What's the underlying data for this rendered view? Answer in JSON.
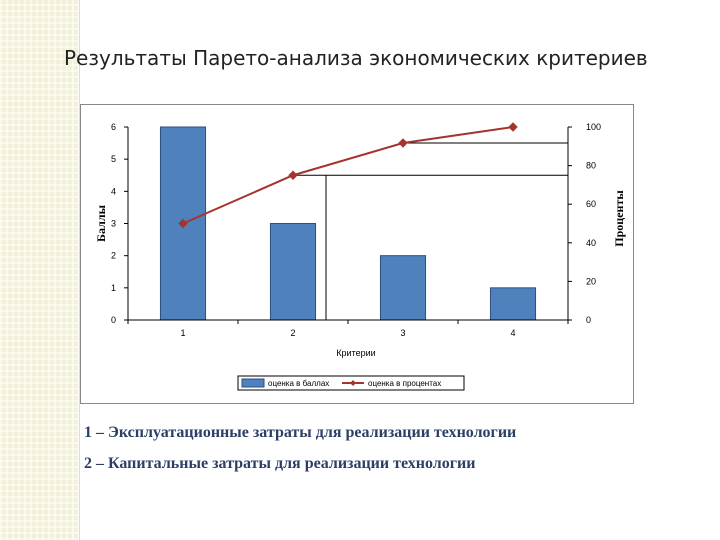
{
  "slide": {
    "title": "Результаты Парето-анализа экономических критериев"
  },
  "chart_data": {
    "type": "bar",
    "categories": [
      "1",
      "2",
      "3",
      "4"
    ],
    "xlabel": "Критерии",
    "ylabel": "Баллы",
    "y2label": "Проценты",
    "ylim": [
      0,
      6
    ],
    "y2lim": [
      0,
      100
    ],
    "yticks": [
      0,
      1,
      2,
      3,
      4,
      5,
      6
    ],
    "y2ticks": [
      0,
      20,
      40,
      60,
      80,
      100
    ],
    "series": [
      {
        "name": "оценка в баллах",
        "type": "bar",
        "axis": "left",
        "values": [
          6,
          3,
          2,
          1
        ],
        "color": "#4f81bd"
      },
      {
        "name": "оценка в процентах",
        "type": "line",
        "axis": "right",
        "values": [
          50,
          75,
          91.7,
          100
        ],
        "color": "#a5342f"
      }
    ],
    "legend": "bottom",
    "grid": false
  },
  "notes": [
    "1 – Эксплуатационные затраты для реализации технологии",
    "2 – Капитальные затраты для реализации технологии"
  ],
  "colors": {
    "bar": "#4f81bd",
    "line": "#a5342f",
    "note_text": "#2c3e66"
  }
}
